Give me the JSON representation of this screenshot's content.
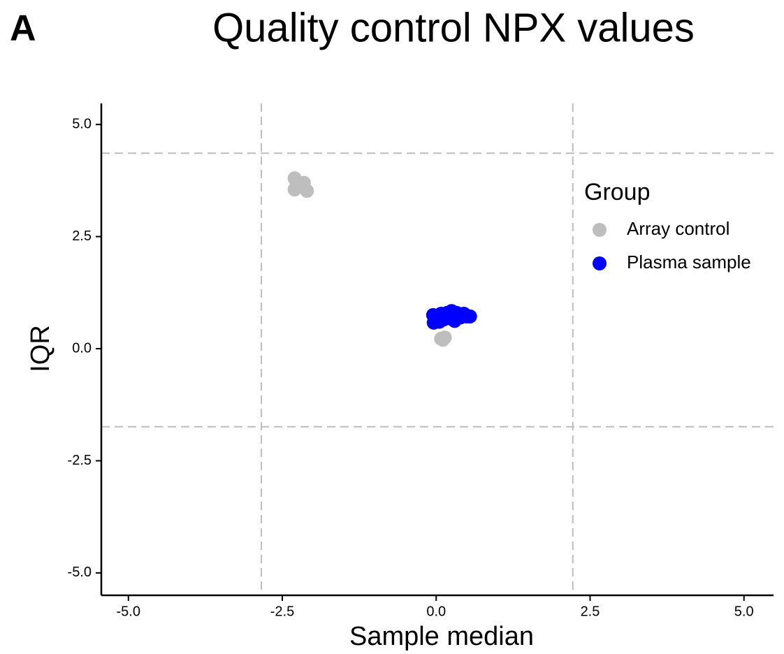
{
  "panel_label": "A",
  "chart_data": {
    "type": "scatter",
    "title": "Quality control NPX values",
    "x_label": "Sample median",
    "y_label": "IQR",
    "legend_title": "Group",
    "legend_position": "right",
    "xlim": [
      -5.44,
      5.48
    ],
    "ylim": [
      -5.5,
      5.47
    ],
    "xticks": [
      {
        "value": -5,
        "label": "-5.0"
      },
      {
        "value": -2.5,
        "label": "-2.5"
      },
      {
        "value": 0,
        "label": "0.0"
      },
      {
        "value": 2.5,
        "label": "2.5"
      },
      {
        "value": 5,
        "label": "5.0"
      }
    ],
    "yticks": [
      {
        "value": -5,
        "label": "-5.0"
      },
      {
        "value": -2.5,
        "label": "-2.5"
      },
      {
        "value": 0,
        "label": "0.0"
      },
      {
        "value": 2.5,
        "label": "2.5"
      },
      {
        "value": 5,
        "label": "5.0"
      }
    ],
    "grid": false,
    "xlines": [
      -2.84,
      2.22
    ],
    "ylines": [
      4.36,
      -1.74
    ],
    "series": [
      {
        "name": "Array control",
        "color": "#bebebe",
        "x": [
          -2.3,
          -2.25,
          -2.15,
          -2.1,
          -2.3,
          -2.2,
          -2.27,
          0.08,
          0.14,
          0.11
        ],
        "values": [
          3.8,
          3.62,
          3.7,
          3.52,
          3.55,
          3.65,
          3.72,
          0.22,
          0.25,
          0.2
        ]
      },
      {
        "name": "Plasma sample",
        "color": "#0000ff",
        "x": [
          -0.05,
          -0.02,
          0.02,
          0.05,
          0.08,
          0.1,
          0.12,
          0.15,
          0.18,
          0.2,
          0.22,
          0.25,
          0.28,
          0.3,
          0.33,
          0.36,
          0.4,
          0.45,
          0.5,
          0.55,
          -0.04,
          0.06,
          0.26,
          0.32
        ],
        "values": [
          0.75,
          0.68,
          0.72,
          0.6,
          0.78,
          0.7,
          0.65,
          0.74,
          0.8,
          0.68,
          0.72,
          0.84,
          0.7,
          0.62,
          0.8,
          0.74,
          0.7,
          0.78,
          0.72,
          0.72,
          0.58,
          0.62,
          0.78,
          0.66
        ]
      }
    ]
  }
}
